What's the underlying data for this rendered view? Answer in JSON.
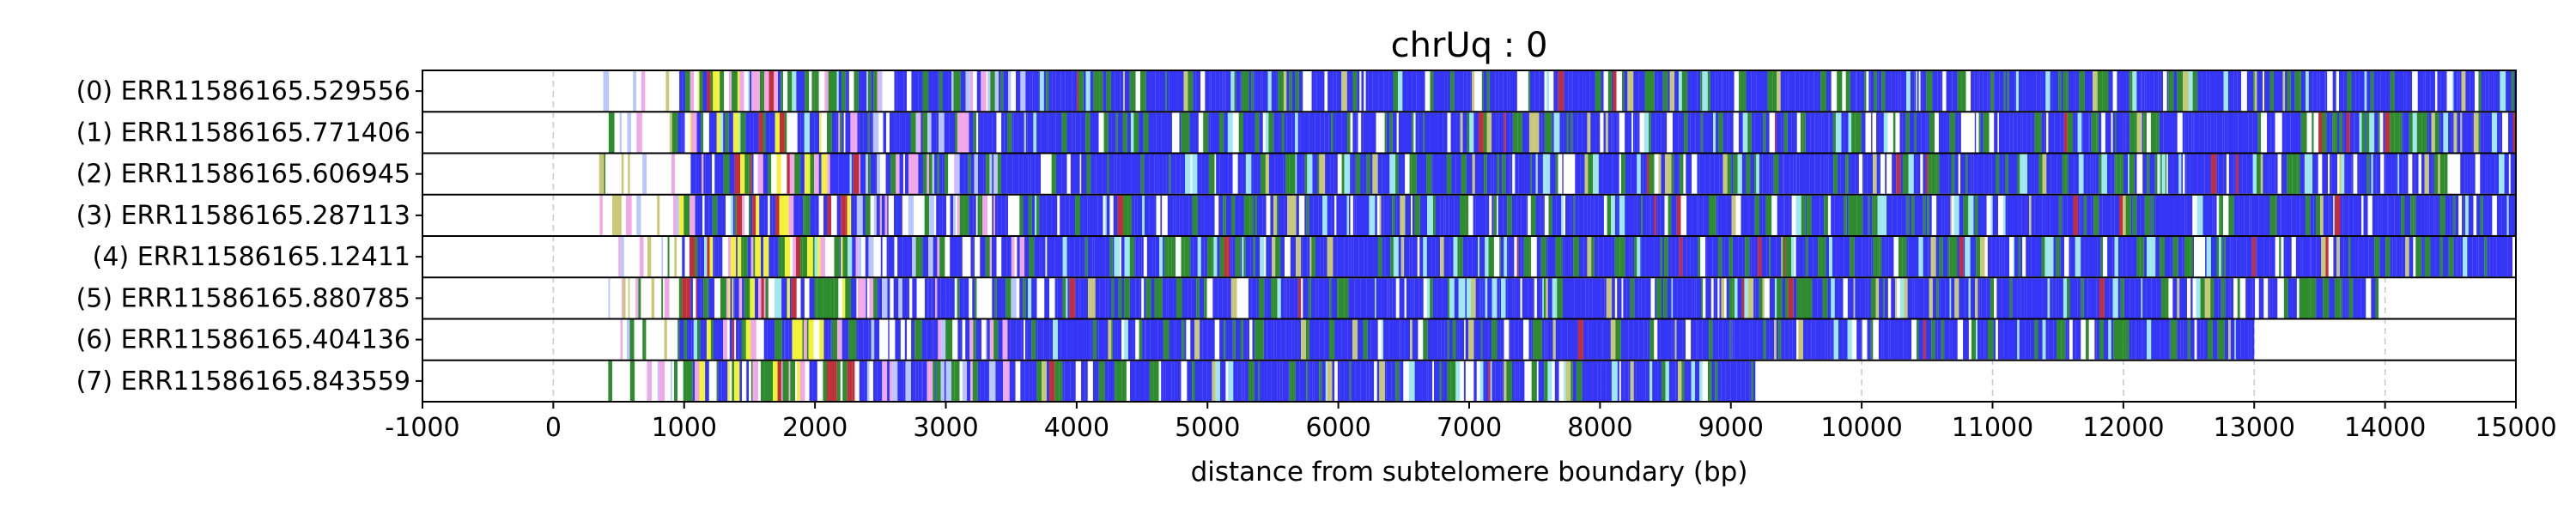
{
  "chart_data": {
    "type": "heatmap",
    "title": "chrUq : 0",
    "xlabel": "distance from subtelomere boundary (bp)",
    "ylabel": "",
    "xlim": [
      -1000,
      15000
    ],
    "x_ticks": [
      "-1000",
      "0",
      "1000",
      "2000",
      "3000",
      "4000",
      "5000",
      "6000",
      "7000",
      "8000",
      "9000",
      "10000",
      "11000",
      "12000",
      "13000",
      "14000",
      "15000"
    ],
    "grid": "vertical dashed",
    "colors": {
      "blue": "#3535f5",
      "green": "#2e8b2e",
      "yellow": "#f2f23a",
      "white": "#ffffff",
      "cyan": "#9fe8f0",
      "pink": "#f0a8e8",
      "red": "#c0303c",
      "lightblue": "#b8c8ff",
      "khaki": "#c8c878"
    },
    "reads": [
      {
        "label": "(0) ERR11586165.529556",
        "end": 15000
      },
      {
        "label": "(1) ERR11586165.771406",
        "end": 15000
      },
      {
        "label": "(2) ERR11586165.606945",
        "end": 15000
      },
      {
        "label": "(3) ERR11586165.287113",
        "end": 15000
      },
      {
        "label": "(4) ERR11586165.12411",
        "end": 15000
      },
      {
        "label": "(5) ERR11586165.880785",
        "end": 13950
      },
      {
        "label": "(6) ERR11586165.404136",
        "end": 13000
      },
      {
        "label": "(7) ERR11586165.843559",
        "end": 9200
      }
    ]
  }
}
